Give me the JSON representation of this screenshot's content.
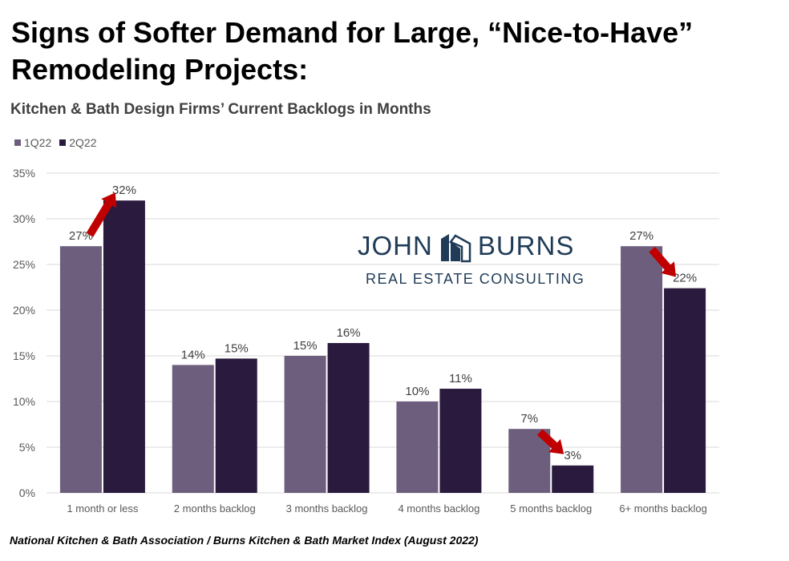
{
  "headline": "Signs of Softer Demand for Large, “Nice-to-Have” Remodeling Projects:",
  "source_note": "National Kitchen & Bath Association / Burns Kitchen & Bath Market Index (August 2022)",
  "logo": {
    "top_left": "JOHN",
    "top_right": "BURNS",
    "bottom": "REAL ESTATE CONSULTING",
    "color": "#1f3b57"
  },
  "colors": {
    "series_1": "#6e5e7e",
    "series_2": "#2a1a3e",
    "arrow": "#c00000",
    "grid": "#d9d9d9",
    "tick_text": "#595959"
  },
  "chart_data": {
    "type": "bar",
    "title": "Kitchen & Bath Design Firms’ Current Backlogs in Months",
    "xlabel": "",
    "ylabel": "",
    "categories": [
      "1 month or less",
      "2 months backlog",
      "3 months backlog",
      "4 months backlog",
      "5 months backlog",
      "6+ months backlog"
    ],
    "series": [
      {
        "name": "1Q22",
        "values": [
          27,
          14,
          15,
          10,
          7,
          27
        ],
        "labels": [
          "27%",
          "14%",
          "15%",
          "10%",
          "7%",
          "27%"
        ]
      },
      {
        "name": "2Q22",
        "values": [
          32,
          14.7,
          16.4,
          11.4,
          3,
          22.4
        ],
        "labels": [
          "32%",
          "15%",
          "16%",
          "11%",
          "3%",
          "22%"
        ]
      }
    ],
    "ylim": [
      0,
      35
    ],
    "yticks": [
      "0%",
      "5%",
      "10%",
      "15%",
      "20%",
      "25%",
      "30%",
      "35%"
    ],
    "grid": true,
    "legend_position": "top-left",
    "arrows": [
      {
        "category_index": 0,
        "direction": "up"
      },
      {
        "category_index": 4,
        "direction": "down"
      },
      {
        "category_index": 5,
        "direction": "down"
      }
    ]
  }
}
